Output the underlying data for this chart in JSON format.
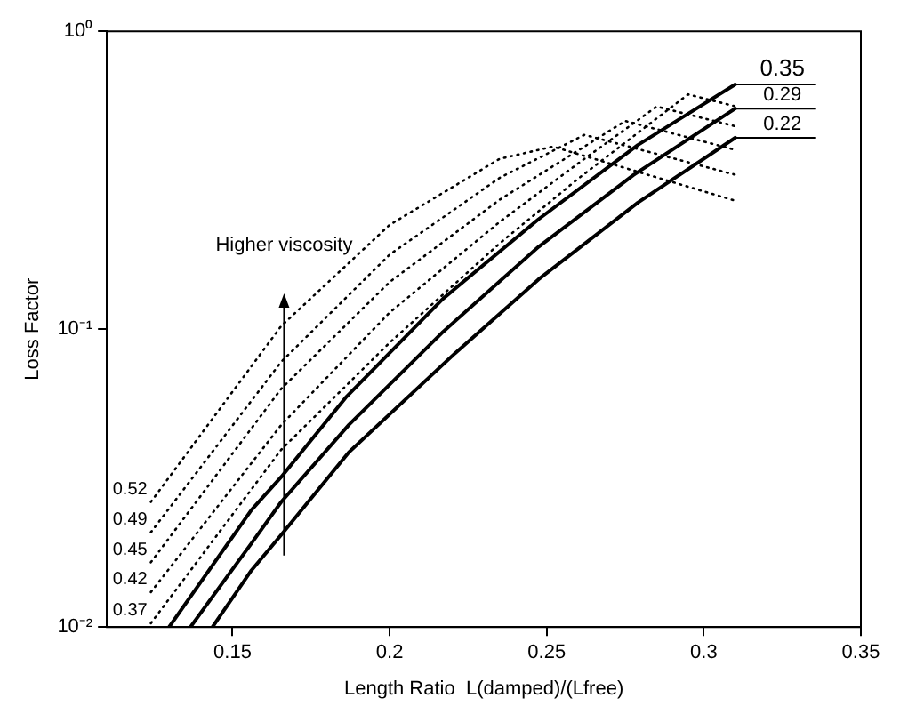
{
  "chart_data": {
    "type": "line",
    "xlabel": "Length Ratio  L(damped)/(Lfree)",
    "ylabel": "Loss Factor",
    "annotations": [
      "Higher viscosity"
    ],
    "xlim": [
      0.11,
      0.35
    ],
    "xticks": [
      0.15,
      0.2,
      0.25,
      0.3,
      0.35
    ],
    "ylim": [
      0.01,
      1
    ],
    "yticks": [
      {
        "value": 0.01,
        "label": "10⁻²"
      },
      {
        "value": 0.1,
        "label": "10⁻¹"
      },
      {
        "value": 1,
        "label": "10⁰"
      }
    ],
    "log": "y",
    "grid": false,
    "legend": false,
    "marker": "none",
    "series": [
      {
        "name": "0.52",
        "color": "#000000",
        "line_style": "dotted",
        "x": [
          0.124,
          0.1655,
          0.2,
          0.235,
          0.252,
          0.31
        ],
        "values": [
          0.0263,
          0.1025,
          0.224,
          0.373,
          0.41,
          0.27
        ]
      },
      {
        "name": "0.49",
        "color": "#000000",
        "line_style": "dotted",
        "x": [
          0.124,
          0.1655,
          0.2,
          0.235,
          0.262,
          0.31
        ],
        "values": [
          0.0208,
          0.0777,
          0.178,
          0.322,
          0.449,
          0.33
        ]
      },
      {
        "name": "0.45",
        "color": "#000000",
        "line_style": "dotted",
        "x": [
          0.124,
          0.1655,
          0.2,
          0.235,
          0.275,
          0.31
        ],
        "values": [
          0.0165,
          0.0631,
          0.144,
          0.272,
          0.5,
          0.4
        ]
      },
      {
        "name": "0.42",
        "color": "#000000",
        "line_style": "dotted",
        "x": [
          0.124,
          0.1655,
          0.2,
          0.235,
          0.26,
          0.285,
          0.31
        ],
        "values": [
          0.0131,
          0.0477,
          0.1138,
          0.229,
          0.36,
          0.559,
          0.48
        ]
      },
      {
        "name": "0.37",
        "color": "#000000",
        "line_style": "dotted",
        "x": [
          0.124,
          0.1655,
          0.2,
          0.235,
          0.26,
          0.295,
          0.31
        ],
        "values": [
          0.0103,
          0.0394,
          0.0901,
          0.194,
          0.32,
          0.614,
          0.56
        ]
      },
      {
        "name": "0.35",
        "color": "#000000",
        "line_style": "solid",
        "x": [
          0.1298,
          0.156,
          0.1655,
          0.186,
          0.217,
          0.2474,
          0.279,
          0.31
        ],
        "values": [
          0.01,
          0.0247,
          0.0319,
          0.0589,
          0.1266,
          0.234,
          0.415,
          0.663
        ]
      },
      {
        "name": "0.29",
        "color": "#000000",
        "line_style": "solid",
        "x": [
          0.1366,
          0.156,
          0.1655,
          0.187,
          0.217,
          0.2474,
          0.2776,
          0.31
        ],
        "values": [
          0.01,
          0.0191,
          0.0263,
          0.0477,
          0.098,
          0.189,
          0.329,
          0.55
        ]
      },
      {
        "name": "0.22",
        "color": "#000000",
        "line_style": "solid",
        "x": [
          0.1436,
          0.156,
          0.1655,
          0.187,
          0.2207,
          0.2474,
          0.279,
          0.31
        ],
        "values": [
          0.01,
          0.0155,
          0.0204,
          0.0386,
          0.0828,
          0.147,
          0.266,
          0.439
        ]
      }
    ]
  }
}
